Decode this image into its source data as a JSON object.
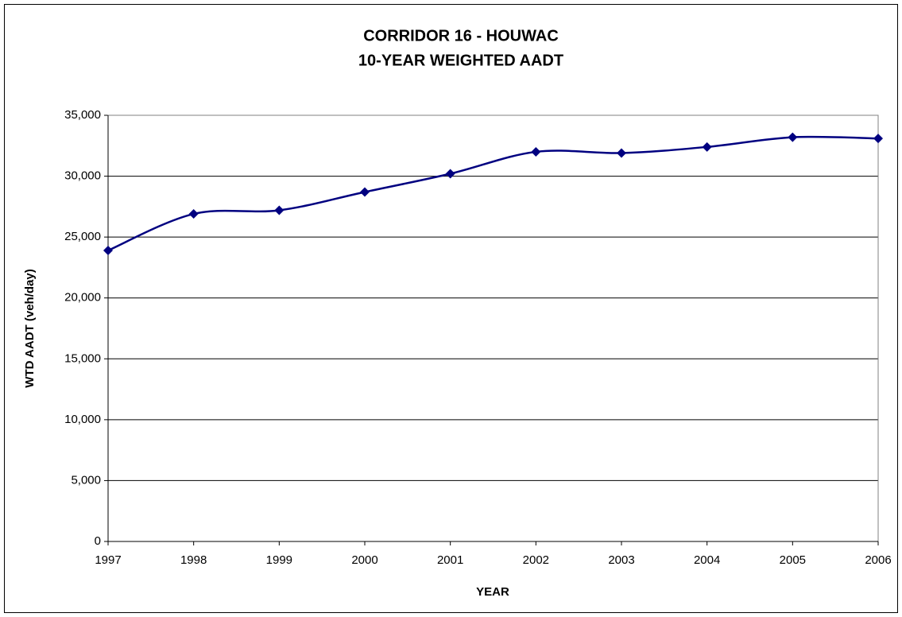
{
  "chart_data": {
    "type": "line",
    "title": "CORRIDOR 16 - HOUWAC",
    "subtitle": "10-YEAR WEIGHTED AADT",
    "x_label": "YEAR",
    "y_label": "WTD AADT (veh/day)",
    "x": [
      1997,
      1998,
      1999,
      2000,
      2001,
      2002,
      2003,
      2004,
      2005,
      2006
    ],
    "series": [
      {
        "name": "WTD AADT",
        "color": "#000080",
        "values": [
          23900,
          26900,
          27200,
          28700,
          30200,
          32000,
          31900,
          32400,
          33200,
          33100
        ]
      }
    ],
    "xlim": [
      1997,
      2006
    ],
    "xticks": [
      1997,
      1998,
      1999,
      2000,
      2001,
      2002,
      2003,
      2004,
      2005,
      2006
    ],
    "ylim": [
      0,
      35000
    ],
    "yticks": [
      0,
      {
        "value": 5000,
        "label": "5,000"
      },
      {
        "value": 10000,
        "label": "10,000"
      },
      {
        "value": 15000,
        "label": "15,000"
      },
      {
        "value": 20000,
        "label": "20,000"
      },
      {
        "value": 25000,
        "label": "25,000"
      },
      {
        "value": 30000,
        "label": "30,000"
      },
      {
        "value": 35000,
        "label": "35,000"
      }
    ],
    "grid": true,
    "smooth": true
  }
}
